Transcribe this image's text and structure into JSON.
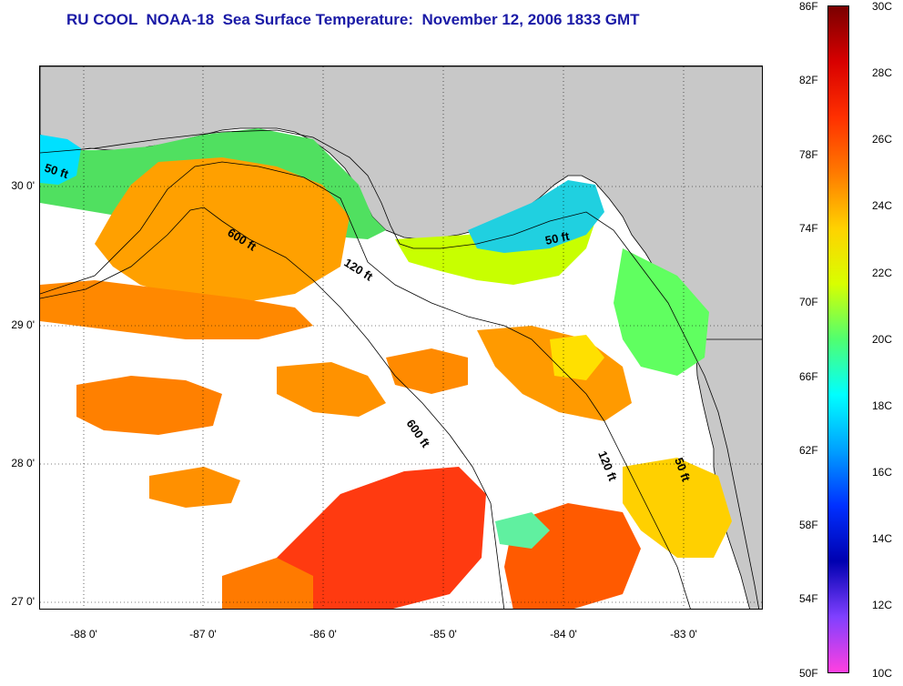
{
  "header": {
    "title": "RU COOL  NOAA-18  Sea Surface Temperature:  November 12, 2006 1833 GMT"
  },
  "map": {
    "lat_labels": [
      "30 0'",
      "29 0'",
      "28 0'",
      "27 0'"
    ],
    "lon_labels": [
      "-88 0'",
      "-87 0'",
      "-86 0'",
      "-85 0'",
      "-84 0'",
      "-83 0'"
    ],
    "contour_labels": {
      "c50_west": "50 ft",
      "c600_north": "600 ft",
      "c120_north": "120 ft",
      "c50_east": "50 ft",
      "c600_south": "600 ft",
      "c120_south": "120 ft",
      "c50_south": "50 ft"
    },
    "colors": {
      "land": "#c8c8c8",
      "cloud": "#ffffff",
      "contour": "#000000"
    }
  },
  "colorbar": {
    "f_labels": [
      "86F",
      "82F",
      "78F",
      "74F",
      "70F",
      "66F",
      "62F",
      "58F",
      "54F",
      "50F"
    ],
    "c_labels": [
      "30C",
      "28C",
      "26C",
      "24C",
      "22C",
      "20C",
      "18C",
      "16C",
      "14C",
      "12C",
      "10C"
    ],
    "gradient": [
      "#7a0000",
      "#d80000",
      "#ff3000",
      "#ff7a00",
      "#ffd200",
      "#d8ff00",
      "#50ff70",
      "#00ffff",
      "#00a0ff",
      "#0030ff",
      "#0000b0",
      "#8040ff",
      "#ff40e0"
    ]
  }
}
